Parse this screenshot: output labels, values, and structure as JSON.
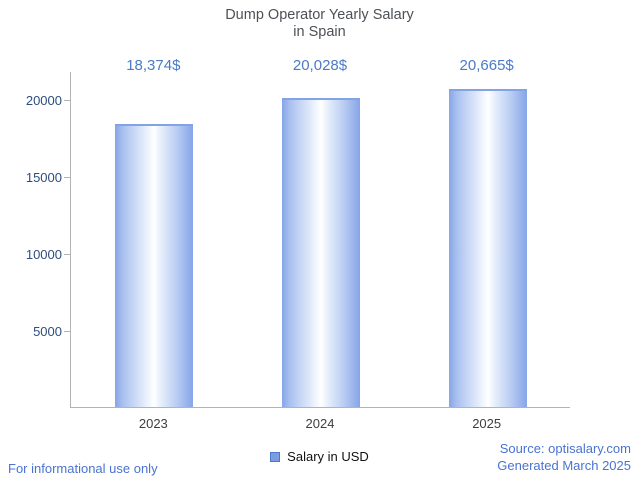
{
  "chart_data": {
    "type": "bar",
    "title_lines": [
      "Dump Operator Yearly Salary",
      "in Spain"
    ],
    "categories": [
      "2023",
      "2024",
      "2025"
    ],
    "values": [
      18374,
      20028,
      20665
    ],
    "value_labels": [
      "18,374$",
      "20,028$",
      "20,665$"
    ],
    "series": [
      {
        "name": "Salary in USD",
        "values": [
          18374,
          20028,
          20665
        ]
      }
    ],
    "xlabel": "",
    "ylabel": "",
    "ylim": [
      0,
      21800
    ],
    "yticks": [
      5000,
      10000,
      15000,
      20000
    ],
    "grid": false,
    "legend_position": "bottom-center"
  },
  "legend": {
    "label": "Salary in USD"
  },
  "footer": {
    "disclaimer": "For informational use only",
    "source": "Source: optisalary.com",
    "generated": "Generated March 2025"
  },
  "colors": {
    "bar_edge": "#86a5e7",
    "bar_center": "#ffffff",
    "bar_top": "#84a3e4",
    "value_label": "#4a7bc8",
    "y_tick_label": "#2e4e7e",
    "x_tick_label": "#3c4043",
    "axis": "#b3b3b3",
    "title": "#4d5156",
    "footer": "#4a73d1",
    "legend_marker": "#7a9de2"
  }
}
